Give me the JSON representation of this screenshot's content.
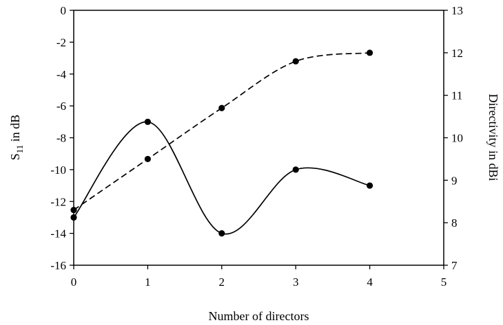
{
  "chart_data": {
    "type": "line",
    "xlabel": "Number of directors",
    "ylabel_left": {
      "main": "S",
      "sub": "11",
      "rest": " in dB"
    },
    "ylabel_right": "Directivity in dBi",
    "xlim": [
      0,
      5
    ],
    "ylim_left": [
      -16,
      0
    ],
    "ylim_right": [
      7,
      13
    ],
    "x_ticks": [
      "0",
      "1",
      "2",
      "3",
      "4",
      "5"
    ],
    "y_left_ticks": [
      "0",
      "-2",
      "-4",
      "-6",
      "-8",
      "-10",
      "-12",
      "-14",
      "-16"
    ],
    "y_right_ticks": [
      "13",
      "12",
      "11",
      "10",
      "9",
      "8",
      "7"
    ],
    "grid": false,
    "series": [
      {
        "axis": "left",
        "line_style": "solid",
        "curve": "smooth",
        "x": [
          0,
          1,
          2,
          3,
          4
        ],
        "y": [
          -13,
          -7,
          -14,
          -10,
          -11
        ]
      },
      {
        "axis": "right",
        "line_style": "dashed",
        "curve": "smooth",
        "x": [
          0,
          1,
          2,
          3,
          4
        ],
        "y": [
          8.3,
          9.5,
          10.7,
          11.8,
          12.0
        ]
      }
    ]
  }
}
